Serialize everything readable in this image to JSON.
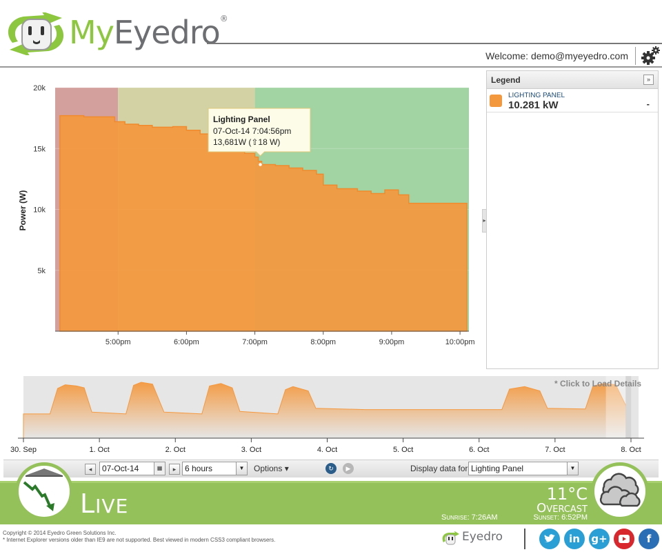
{
  "header": {
    "logo_my": "My",
    "logo_eyedro": "Eyedro",
    "logo_reg": "®",
    "welcome": "Welcome: demo@myeyedro.com",
    "gear_icon": "gear-icon"
  },
  "chart_data": [
    {
      "type": "area",
      "ylabel": "Power (W)",
      "yticks": [
        "5k",
        "10k",
        "15k",
        "20k"
      ],
      "ylim": [
        0,
        20000
      ],
      "xticks": [
        "5:00pm",
        "6:00pm",
        "7:00pm",
        "8:00pm",
        "9:00pm",
        "10:00pm"
      ],
      "x_range_hours": [
        16.08,
        22.13
      ],
      "bands": [
        {
          "from": 16.08,
          "to": 17.0,
          "color": "#d4a09d"
        },
        {
          "from": 17.0,
          "to": 19.0,
          "color": "#d3d2a4"
        },
        {
          "from": 19.0,
          "to": 22.13,
          "color": "#a2d3a2"
        }
      ],
      "series": [
        {
          "color": "#f4983e",
          "points": [
            [
              16.15,
              17700
            ],
            [
              16.5,
              17600
            ],
            [
              16.95,
              17200
            ],
            [
              17.1,
              17000
            ],
            [
              17.3,
              16900
            ],
            [
              17.5,
              16750
            ],
            [
              17.8,
              16800
            ],
            [
              18.0,
              16500
            ],
            [
              18.2,
              16200
            ],
            [
              18.35,
              16000
            ],
            [
              18.5,
              15800
            ],
            [
              18.6,
              15200
            ],
            [
              18.75,
              14900
            ],
            [
              18.85,
              14600
            ],
            [
              19.0,
              14300
            ],
            [
              19.05,
              13950
            ],
            [
              19.1,
              13681
            ],
            [
              19.3,
              13600
            ],
            [
              19.5,
              13400
            ],
            [
              19.7,
              13200
            ],
            [
              19.9,
              12900
            ],
            [
              20.0,
              12000
            ],
            [
              20.2,
              11700
            ],
            [
              20.5,
              11500
            ],
            [
              20.7,
              11300
            ],
            [
              20.9,
              11600
            ],
            [
              21.1,
              11200
            ],
            [
              21.25,
              10500
            ],
            [
              22.1,
              10500
            ]
          ]
        }
      ],
      "tooltip": {
        "title": "Lighting Panel",
        "line1": "07-Oct-14 7:04:56pm",
        "line2": "13,681W (⇧18 W)",
        "x": 19.08,
        "y": 13681
      }
    },
    {
      "type": "area",
      "xticks": [
        "30. Sep",
        "1. Oct",
        "2. Oct",
        "3. Oct",
        "4. Oct",
        "5. Oct",
        "6. Oct",
        "7. Oct",
        "8. Oct"
      ],
      "x_range_days": [
        0,
        8.1
      ],
      "series": [
        {
          "color": "#f4983e",
          "points": [
            [
              0,
              3900
            ],
            [
              0.35,
              3900
            ],
            [
              0.45,
              8000
            ],
            [
              0.55,
              8600
            ],
            [
              0.7,
              8400
            ],
            [
              0.8,
              8100
            ],
            [
              0.9,
              4200
            ],
            [
              1.35,
              3900
            ],
            [
              1.45,
              8500
            ],
            [
              1.55,
              9000
            ],
            [
              1.7,
              8700
            ],
            [
              1.85,
              4200
            ],
            [
              2.35,
              3900
            ],
            [
              2.45,
              8400
            ],
            [
              2.6,
              8800
            ],
            [
              2.75,
              8100
            ],
            [
              2.85,
              4300
            ],
            [
              3.35,
              3900
            ],
            [
              3.45,
              7800
            ],
            [
              3.55,
              8300
            ],
            [
              3.75,
              7600
            ],
            [
              3.85,
              4800
            ],
            [
              4.5,
              4600
            ],
            [
              5.5,
              4600
            ],
            [
              6.3,
              4600
            ],
            [
              6.4,
              7900
            ],
            [
              6.6,
              8300
            ],
            [
              6.8,
              7600
            ],
            [
              6.9,
              4800
            ],
            [
              7.4,
              4700
            ],
            [
              7.5,
              8400
            ],
            [
              7.65,
              8800
            ],
            [
              7.8,
              8600
            ],
            [
              7.95,
              4800
            ],
            [
              7.99,
              2000
            ]
          ]
        }
      ],
      "selection": {
        "from": 7.67,
        "to": 7.93
      }
    }
  ],
  "legend": {
    "title": "Legend",
    "expand": "»",
    "item_name": "LIGHTING PANEL",
    "item_value": "10.281 kW",
    "item_dash": "-"
  },
  "navigator": {
    "note": "* Click to Load Details"
  },
  "controls": {
    "date": "07-Oct-14",
    "range": "6 hours",
    "options": "Options ▾",
    "display_label": "Display data for:",
    "display_value": "Lighting Panel"
  },
  "live": {
    "label_first": "L",
    "label_rest": "IVE",
    "temperature": "11°C",
    "condition": "Overcast",
    "sunrise": "Sunrise: 7:26AM",
    "sunset": "Sunset: 6:52PM"
  },
  "footer": {
    "copyright1": "Copyright © 2014 Eyedro Green Solutions Inc.",
    "copyright2": "* Internet Explorer versions older than IE9 are not supported. Best viewed in modern CSS3 compliant browsers.",
    "logo": "Eyedro",
    "social": [
      "twitter-icon",
      "linkedin-icon",
      "google-plus-icon",
      "youtube-icon",
      "facebook-icon"
    ],
    "social_labels": {
      "linkedin": "in",
      "google": "g+",
      "facebook": "f"
    }
  },
  "colors": {
    "brand_green": "#95c15a",
    "series_orange": "#f4983e",
    "twitter": "#2a9fd6",
    "linkedin": "#2a9fd6",
    "google": "#2a9fd6",
    "youtube": "#d9272e",
    "facebook": "#2a6eb5"
  }
}
